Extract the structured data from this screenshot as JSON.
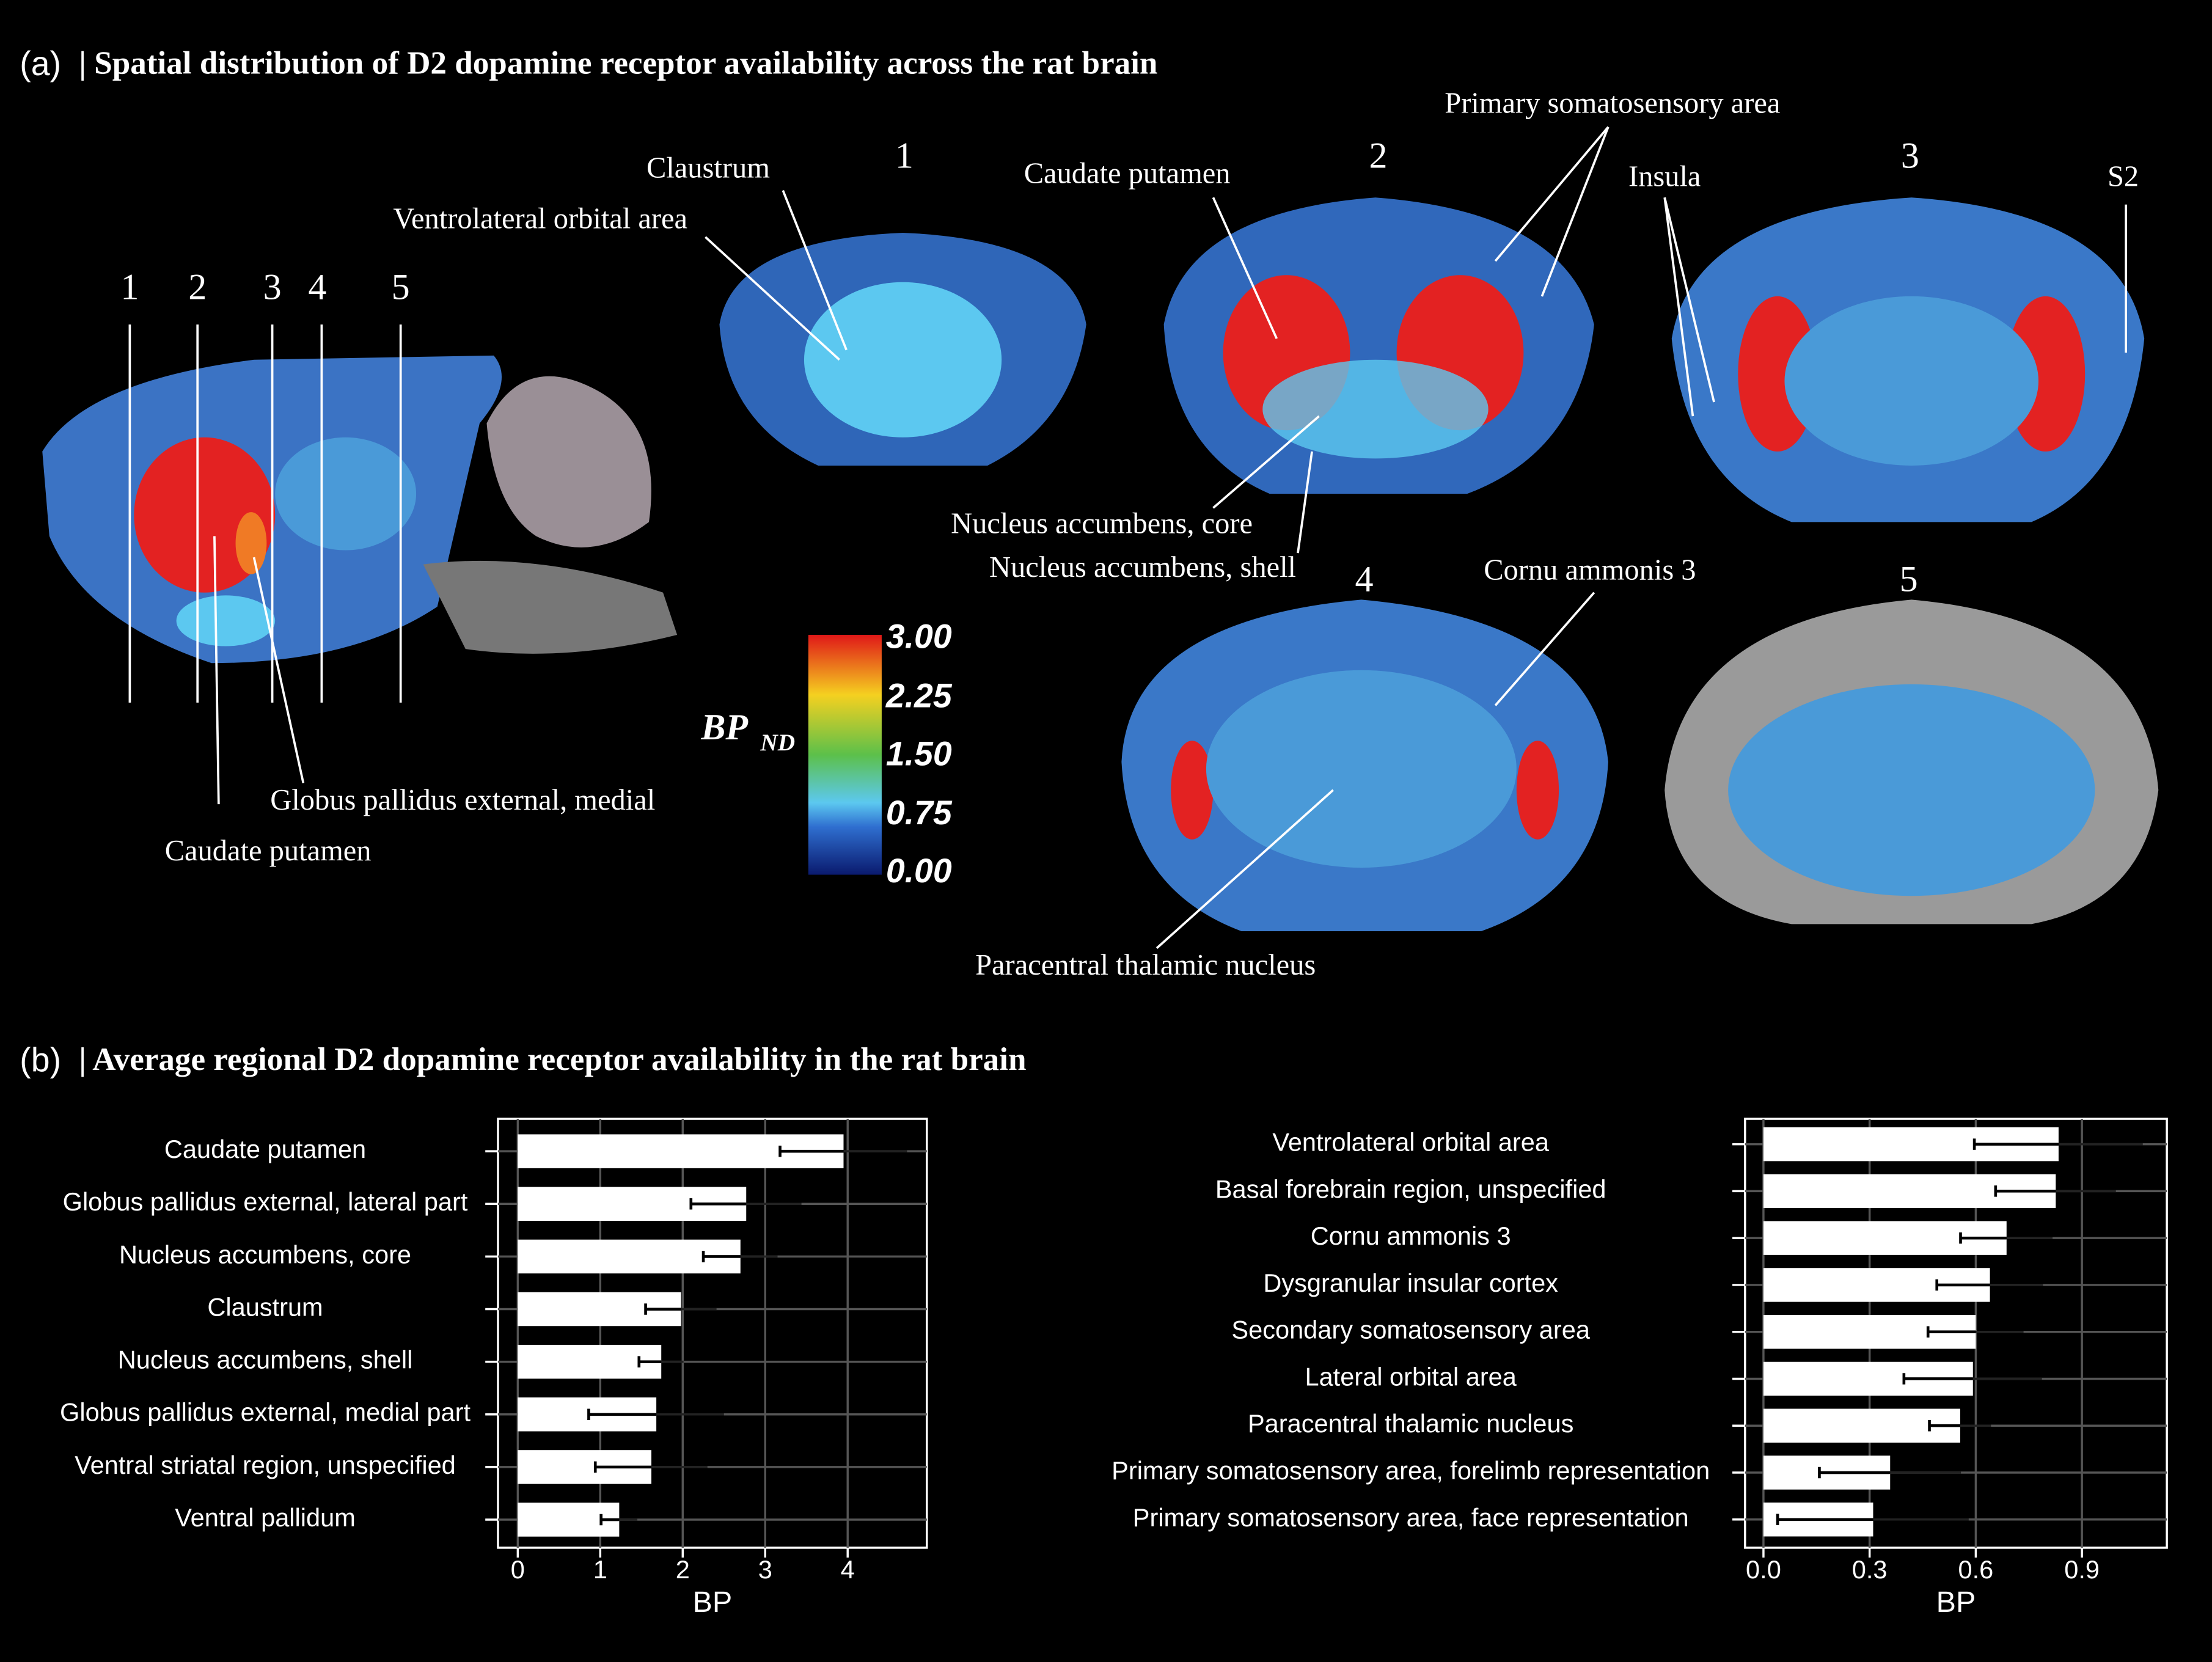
{
  "panel_a": {
    "label": "(a)",
    "title": "| Spatial distribution of D2 dopamine receptor availability across the rat brain",
    "sagittal_slice_labels": [
      "1",
      "2",
      "3",
      "4",
      "5"
    ],
    "coronal_slice_labels": [
      "1",
      "2",
      "3",
      "4",
      "5"
    ],
    "annotations": [
      "Claustrum",
      "Ventrolateral orbital area",
      "Caudate putamen",
      "Primary somatosensory area",
      "Insula",
      "S2",
      "Nucleus accumbens, core",
      "Nucleus accumbens, shell",
      "Cornu ammonis 3",
      "Paracentral thalamic nucleus",
      "Globus pallidus external, medial",
      "Caudate putamen"
    ],
    "colorbar": {
      "label": "BP",
      "subscript": "ND",
      "ticks": [
        "3.00",
        "2.25",
        "1.50",
        "0.75",
        "0.00"
      ]
    }
  },
  "panel_b": {
    "label": "(b)",
    "title": "| Average regional D2 dopamine receptor availability in the rat brain"
  },
  "chart_data": [
    {
      "type": "bar",
      "orientation": "horizontal",
      "categories": [
        "Caudate putamen",
        "Globus pallidus external, lateral part",
        "Nucleus accumbens, core",
        "Claustrum",
        "Nucleus accumbens, shell",
        "Globus pallidus external, medial part",
        "Ventral striatal region, unspecified",
        "Ventral pallidum"
      ],
      "values": [
        3.95,
        2.77,
        2.7,
        1.98,
        1.74,
        1.68,
        1.62,
        1.23
      ],
      "errors": [
        0.77,
        0.67,
        0.45,
        0.43,
        0.27,
        0.82,
        0.68,
        0.22
      ],
      "color": "#ffffff",
      "xlabel": "BP",
      "xlim": [
        -0.24,
        4.96
      ],
      "xticks": [
        0,
        1,
        2,
        3,
        4
      ],
      "grid": true
    },
    {
      "type": "bar",
      "orientation": "horizontal",
      "categories": [
        "Ventrolateral orbital area",
        "Basal forebrain region, unspecified",
        "Cornu ammonis 3",
        "Dysgranular insular cortex",
        "Secondary somatosensory area",
        "Lateral orbital area",
        "Paracentral thalamic nucleus",
        "Primary somatosensory area, forelimb representation",
        "Primary somatosensory area, face representation"
      ],
      "values": [
        0.834,
        0.826,
        0.687,
        0.64,
        0.6,
        0.592,
        0.556,
        0.358,
        0.31
      ],
      "errors": [
        0.238,
        0.17,
        0.13,
        0.15,
        0.135,
        0.195,
        0.087,
        0.2,
        0.27
      ],
      "color": "#ffffff",
      "xlabel": "BP",
      "xlim": [
        -0.052,
        1.14
      ],
      "xticks": [
        {
          "value": 0,
          "label": "0.0"
        },
        0.3,
        0.6,
        0.9
      ],
      "grid": true
    }
  ]
}
